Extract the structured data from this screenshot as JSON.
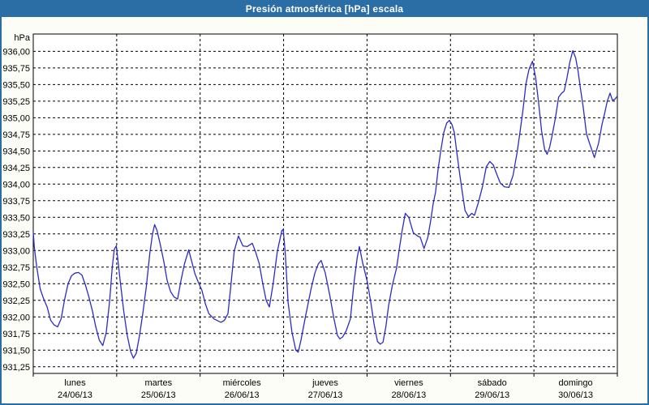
{
  "window": {
    "title": "Presión atmosférica [hPa] escala"
  },
  "chart_data": {
    "type": "line",
    "title": "Presión atmosférica [hPa] escala",
    "ylabel": "hPa",
    "xlabel": "",
    "x_unit": "hours_from_monday_00h",
    "xlim": [
      0,
      168
    ],
    "ylim": [
      931.15,
      936.26
    ],
    "grid": "dashed",
    "legend_position": "none",
    "colors": {
      "accent": "#2b6da5",
      "frame": "#2b6da5",
      "grid": "#000000",
      "plot_bg": "#ffffff",
      "line": "#2b2bc8"
    },
    "yticks": [
      {
        "value": 936.0,
        "label": "936,00"
      },
      {
        "value": 935.75,
        "label": "935,75"
      },
      {
        "value": 935.5,
        "label": "935,50"
      },
      {
        "value": 935.25,
        "label": "935,25"
      },
      {
        "value": 935.0,
        "label": "935,00"
      },
      {
        "value": 934.75,
        "label": "934,75"
      },
      {
        "value": 934.5,
        "label": "934,50"
      },
      {
        "value": 934.25,
        "label": "934,25"
      },
      {
        "value": 934.0,
        "label": "934,00"
      },
      {
        "value": 933.75,
        "label": "933,75"
      },
      {
        "value": 933.5,
        "label": "933,50"
      },
      {
        "value": 933.25,
        "label": "933,25"
      },
      {
        "value": 933.0,
        "label": "933,00"
      },
      {
        "value": 932.75,
        "label": "932,75"
      },
      {
        "value": 932.5,
        "label": "932,50"
      },
      {
        "value": 932.25,
        "label": "932,25"
      },
      {
        "value": 932.0,
        "label": "932,00"
      },
      {
        "value": 931.75,
        "label": "931,75"
      },
      {
        "value": 931.5,
        "label": "931,50"
      },
      {
        "value": 931.25,
        "label": "931,25"
      }
    ],
    "categories": [
      {
        "day": "lunes",
        "date": "24/06/13"
      },
      {
        "day": "martes",
        "date": "25/06/13"
      },
      {
        "day": "miércoles",
        "date": "26/06/13"
      },
      {
        "day": "jueves",
        "date": "27/06/13"
      },
      {
        "day": "viernes",
        "date": "28/06/13"
      },
      {
        "day": "sábado",
        "date": "29/06/13"
      },
      {
        "day": "domingo",
        "date": "30/06/13"
      }
    ],
    "series": [
      {
        "name": "Presión atmosférica [hPa]",
        "color": "#2b2bc8",
        "points": [
          [
            0,
            933.28
          ],
          [
            0.3,
            933.05
          ],
          [
            0.7,
            932.88
          ],
          [
            1,
            932.75
          ],
          [
            2,
            932.42
          ],
          [
            3,
            932.27
          ],
          [
            4,
            932.15
          ],
          [
            5,
            931.95
          ],
          [
            6,
            931.88
          ],
          [
            7,
            931.85
          ],
          [
            8,
            931.97
          ],
          [
            9,
            932.26
          ],
          [
            10,
            932.5
          ],
          [
            11,
            932.62
          ],
          [
            12,
            932.66
          ],
          [
            13,
            932.67
          ],
          [
            14,
            932.63
          ],
          [
            15,
            932.48
          ],
          [
            16,
            932.3
          ],
          [
            17,
            932.09
          ],
          [
            18,
            931.85
          ],
          [
            19,
            931.65
          ],
          [
            20,
            931.57
          ],
          [
            21,
            931.77
          ],
          [
            22,
            932.26
          ],
          [
            22.7,
            932.74
          ],
          [
            23.3,
            933.02
          ],
          [
            23.9,
            933.07
          ],
          [
            25,
            932.55
          ],
          [
            26,
            932.1
          ],
          [
            27,
            931.73
          ],
          [
            28,
            931.48
          ],
          [
            28.8,
            931.38
          ],
          [
            29.6,
            931.45
          ],
          [
            30.5,
            931.7
          ],
          [
            31.5,
            932.05
          ],
          [
            32.5,
            932.45
          ],
          [
            33.5,
            932.95
          ],
          [
            34.3,
            933.25
          ],
          [
            34.9,
            933.39
          ],
          [
            35.6,
            933.3
          ],
          [
            36.5,
            933.1
          ],
          [
            37.5,
            932.85
          ],
          [
            38.5,
            932.55
          ],
          [
            39.5,
            932.38
          ],
          [
            40.5,
            932.3
          ],
          [
            41.5,
            932.27
          ],
          [
            42.5,
            932.55
          ],
          [
            43.5,
            932.8
          ],
          [
            44.7,
            933.01
          ],
          [
            45.5,
            932.85
          ],
          [
            46.5,
            932.65
          ],
          [
            47.5,
            932.52
          ],
          [
            48.5,
            932.4
          ],
          [
            49.5,
            932.2
          ],
          [
            50.5,
            932.05
          ],
          [
            52,
            931.97
          ],
          [
            54,
            931.92
          ],
          [
            55,
            931.95
          ],
          [
            56,
            932.05
          ],
          [
            56.8,
            932.45
          ],
          [
            57.8,
            932.99
          ],
          [
            59,
            933.22
          ],
          [
            60.3,
            933.07
          ],
          [
            61.5,
            933.06
          ],
          [
            63,
            933.11
          ],
          [
            64,
            932.97
          ],
          [
            65,
            932.8
          ],
          [
            66,
            932.5
          ],
          [
            67,
            932.25
          ],
          [
            67.9,
            932.15
          ],
          [
            69,
            932.5
          ],
          [
            70.2,
            932.99
          ],
          [
            71.5,
            933.3
          ],
          [
            71.9,
            933.32
          ],
          [
            72.5,
            932.95
          ],
          [
            73.3,
            932.22
          ],
          [
            74.4,
            931.77
          ],
          [
            75.5,
            931.5
          ],
          [
            76.2,
            931.47
          ],
          [
            77,
            931.65
          ],
          [
            78.3,
            932.01
          ],
          [
            79.9,
            932.42
          ],
          [
            81,
            932.66
          ],
          [
            82,
            932.8
          ],
          [
            82.8,
            932.85
          ],
          [
            84,
            932.66
          ],
          [
            85.3,
            932.32
          ],
          [
            86.5,
            931.97
          ],
          [
            87.5,
            931.72
          ],
          [
            88.2,
            931.67
          ],
          [
            89,
            931.7
          ],
          [
            90,
            931.79
          ],
          [
            91.2,
            931.97
          ],
          [
            92.3,
            932.54
          ],
          [
            93.2,
            932.9
          ],
          [
            93.8,
            933.06
          ],
          [
            94.8,
            932.8
          ],
          [
            96,
            932.55
          ],
          [
            97.1,
            932.22
          ],
          [
            98,
            931.9
          ],
          [
            99,
            931.63
          ],
          [
            99.8,
            931.59
          ],
          [
            100.6,
            931.62
          ],
          [
            101.4,
            931.85
          ],
          [
            102.2,
            932.17
          ],
          [
            103.3,
            932.48
          ],
          [
            104.5,
            932.74
          ],
          [
            105.3,
            933.03
          ],
          [
            106.1,
            933.3
          ],
          [
            107,
            933.56
          ],
          [
            108,
            933.5
          ],
          [
            109.3,
            933.27
          ],
          [
            110.5,
            933.22
          ],
          [
            111.3,
            933.2
          ],
          [
            112.4,
            933.03
          ],
          [
            113.5,
            933.2
          ],
          [
            114.3,
            933.45
          ],
          [
            115,
            933.7
          ],
          [
            115.7,
            933.88
          ],
          [
            116.4,
            934.21
          ],
          [
            117.2,
            934.5
          ],
          [
            118.1,
            934.78
          ],
          [
            118.9,
            934.92
          ],
          [
            119.7,
            934.96
          ],
          [
            120.4,
            934.9
          ],
          [
            121.1,
            934.78
          ],
          [
            121.9,
            934.45
          ],
          [
            122.7,
            934.13
          ],
          [
            123.5,
            933.84
          ],
          [
            124.2,
            933.6
          ],
          [
            125.2,
            933.51
          ],
          [
            126.1,
            933.56
          ],
          [
            126.9,
            933.53
          ],
          [
            128,
            933.72
          ],
          [
            129.2,
            933.96
          ],
          [
            130.3,
            934.26
          ],
          [
            131.3,
            934.34
          ],
          [
            132.3,
            934.29
          ],
          [
            133.3,
            934.15
          ],
          [
            134.3,
            934.02
          ],
          [
            135.5,
            933.96
          ],
          [
            136.8,
            933.95
          ],
          [
            138,
            934.13
          ],
          [
            139.2,
            934.49
          ],
          [
            140.1,
            934.82
          ],
          [
            140.9,
            935.14
          ],
          [
            141.7,
            935.51
          ],
          [
            142.6,
            935.73
          ],
          [
            143.6,
            935.85
          ],
          [
            144.5,
            935.6
          ],
          [
            145.3,
            935.25
          ],
          [
            146.2,
            934.8
          ],
          [
            147.1,
            934.52
          ],
          [
            147.8,
            934.45
          ],
          [
            148.5,
            934.55
          ],
          [
            149.2,
            934.72
          ],
          [
            150.2,
            935.0
          ],
          [
            151.1,
            935.31
          ],
          [
            152,
            935.37
          ],
          [
            152.7,
            935.4
          ],
          [
            153.5,
            935.6
          ],
          [
            154.3,
            935.83
          ],
          [
            155.2,
            936.01
          ],
          [
            156,
            935.9
          ],
          [
            156.7,
            935.7
          ],
          [
            157.4,
            935.43
          ],
          [
            158.2,
            935.15
          ],
          [
            159.1,
            934.76
          ],
          [
            160.1,
            934.6
          ],
          [
            161.4,
            934.4
          ],
          [
            162.6,
            934.62
          ],
          [
            163.6,
            934.9
          ],
          [
            164.4,
            935.08
          ],
          [
            165.1,
            935.25
          ],
          [
            165.9,
            935.37
          ],
          [
            166.6,
            935.26
          ],
          [
            167.3,
            935.28
          ],
          [
            167.9,
            935.32
          ]
        ]
      }
    ]
  }
}
